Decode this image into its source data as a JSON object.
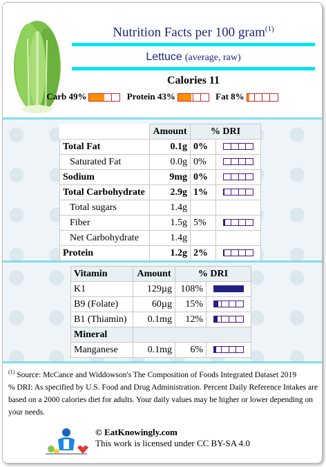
{
  "header": {
    "title": "Nutrition Facts per 100 gram",
    "title_sup": "(1)",
    "food_name": "Lettuce",
    "food_desc": "(average, raw)",
    "calories": "Calories 11",
    "macros": [
      {
        "label": "Carb 49%",
        "percent": 49
      },
      {
        "label": "Protein 43%",
        "percent": 43
      },
      {
        "label": "Fat 8%",
        "percent": 8
      }
    ]
  },
  "nutrition_table": {
    "headers": [
      "Amount",
      "% DRI"
    ],
    "rows": [
      {
        "name": "Total Fat",
        "amount": "0.1g",
        "dri": "0%",
        "dri_value": 0,
        "bold": true,
        "indent": false
      },
      {
        "name": "Saturated Fat",
        "amount": "0.0g",
        "dri": "0%",
        "dri_value": 0,
        "bold": false,
        "indent": true
      },
      {
        "name": "Sodium",
        "amount": "9mg",
        "dri": "0%",
        "dri_value": 0,
        "bold": true,
        "indent": false
      },
      {
        "name": "Total Carbohydrate",
        "amount": "2.9g",
        "dri": "1%",
        "dri_value": 1,
        "bold": true,
        "indent": false
      },
      {
        "name": "Total sugars",
        "amount": "1.4g",
        "dri": "",
        "dri_value": null,
        "bold": false,
        "indent": true
      },
      {
        "name": "Fiber",
        "amount": "1.5g",
        "dri": "5%",
        "dri_value": 5,
        "bold": false,
        "indent": true
      },
      {
        "name": "Net Carbohydrate",
        "amount": "1.4g",
        "dri": "",
        "dri_value": null,
        "bold": false,
        "indent": true
      },
      {
        "name": "Protein",
        "amount": "1.2g",
        "dri": "2%",
        "dri_value": 2,
        "bold": true,
        "indent": false
      }
    ]
  },
  "vitamin_table": {
    "headers": [
      "Vitamin",
      "Amount",
      "% DRI"
    ],
    "vitamins": [
      {
        "name": "K1",
        "amount": "129µg",
        "dri": "108%",
        "dri_value": 108
      },
      {
        "name": "B9 (Folate)",
        "amount": "60µg",
        "dri": "15%",
        "dri_value": 15
      },
      {
        "name": "B1 (Thiamin)",
        "amount": "0.1mg",
        "dri": "12%",
        "dri_value": 12
      }
    ],
    "mineral_header": "Mineral",
    "minerals": [
      {
        "name": "Manganese",
        "amount": "0.1mg",
        "dri": "6%",
        "dri_value": 6
      }
    ]
  },
  "footer": {
    "note_sup": "(1)",
    "source": " Source: McCance and Widdowson's The Composition of Foods Integrated Dataset 2019",
    "dri_note": "% DRI: As specified by U.S. Food and Drug Administration. Percent Daily Reference Intakes are based on a 2000 calories diet for adults. Your daily values may be higher or lower depending on your needs.",
    "site": "© EatKnowingly.com",
    "license": "This work is licensed under CC BY-SA 4.0"
  },
  "colors": {
    "title": "#1a237e",
    "cyan_bar": "#00e5ee",
    "macro_fill": "#ff8f00",
    "dri_fill": "#1a237e"
  }
}
